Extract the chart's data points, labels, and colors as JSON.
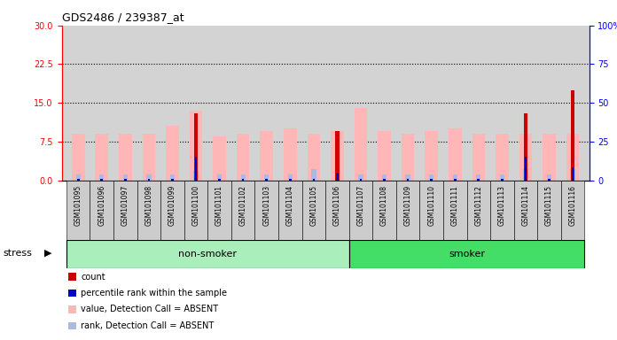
{
  "title": "GDS2486 / 239387_at",
  "samples": [
    "GSM101095",
    "GSM101096",
    "GSM101097",
    "GSM101098",
    "GSM101099",
    "GSM101100",
    "GSM101101",
    "GSM101102",
    "GSM101103",
    "GSM101104",
    "GSM101105",
    "GSM101106",
    "GSM101107",
    "GSM101108",
    "GSM101109",
    "GSM101110",
    "GSM101111",
    "GSM101112",
    "GSM101113",
    "GSM101114",
    "GSM101115",
    "GSM101116"
  ],
  "pink_bars": [
    9.0,
    9.0,
    9.0,
    9.0,
    10.5,
    13.5,
    8.5,
    9.0,
    9.5,
    10.0,
    9.0,
    9.5,
    14.0,
    9.5,
    9.0,
    9.5,
    10.0,
    9.0,
    9.0,
    9.0,
    9.0,
    9.0
  ],
  "lightblue_bars": [
    1.2,
    1.2,
    1.2,
    1.2,
    1.2,
    1.8,
    1.2,
    1.2,
    1.2,
    1.2,
    2.2,
    1.2,
    1.2,
    1.2,
    1.2,
    1.2,
    1.2,
    1.2,
    1.2,
    2.2,
    1.2,
    2.2
  ],
  "red_bars": [
    0.0,
    0.0,
    0.0,
    0.0,
    0.0,
    13.0,
    0.0,
    0.0,
    0.0,
    0.0,
    0.0,
    9.5,
    0.0,
    0.0,
    0.0,
    0.0,
    0.0,
    0.0,
    0.0,
    13.0,
    0.0,
    17.5
  ],
  "blue_bars": [
    0.3,
    0.3,
    0.3,
    0.3,
    0.3,
    4.5,
    0.3,
    0.3,
    0.3,
    0.3,
    0.3,
    1.5,
    0.3,
    0.3,
    0.3,
    0.3,
    0.3,
    0.3,
    0.3,
    4.5,
    0.3,
    2.5
  ],
  "non_smoker_count": 12,
  "smoker_count": 10,
  "ylim_left": [
    0,
    30
  ],
  "ylim_right": [
    0,
    100
  ],
  "yticks_left": [
    0,
    7.5,
    15,
    22.5,
    30
  ],
  "yticks_right": [
    0,
    25,
    50,
    75,
    100
  ],
  "grid_values": [
    7.5,
    15,
    22.5
  ],
  "pink_color": "#FFB6B6",
  "lightblue_color": "#AABBDD",
  "red_color": "#CC0000",
  "blue_color": "#0000CC",
  "non_smoker_color": "#AAEEBB",
  "smoker_color": "#44DD66",
  "bg_color": "#D3D3D3",
  "tick_bg_color": "#CCCCCC",
  "stress_label": "stress",
  "non_smoker_label": "non-smoker",
  "smoker_label": "smoker",
  "legend_items": [
    {
      "label": "count",
      "color": "#CC0000"
    },
    {
      "label": "percentile rank within the sample",
      "color": "#0000CC"
    },
    {
      "label": "value, Detection Call = ABSENT",
      "color": "#FFB6B6"
    },
    {
      "label": "rank, Detection Call = ABSENT",
      "color": "#AABBDD"
    }
  ]
}
